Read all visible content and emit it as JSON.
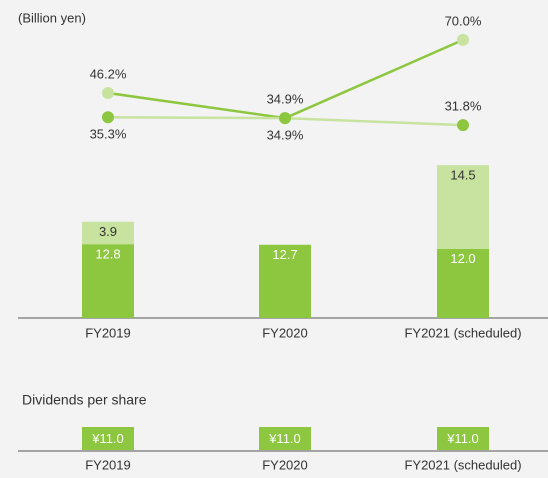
{
  "chart_data": [
    {
      "type": "combo",
      "unit_label": "(Billion yen)",
      "categories": [
        "FY2019",
        "FY2020",
        "FY2021 (scheduled)"
      ],
      "ylim": [
        0,
        30
      ],
      "y2lim": [
        0,
        100
      ],
      "series": [
        {
          "type": "bar",
          "color": "#8dc63f",
          "label_color": "#ffffff",
          "values": [
            12.8,
            12.7,
            12.0
          ],
          "value_labels": [
            "12.8",
            "12.7",
            "12.0"
          ]
        },
        {
          "type": "bar",
          "color": "#c8e2a0",
          "label_color": "#333333",
          "values": [
            3.9,
            null,
            14.5
          ]
        },
        {
          "type": "line",
          "axis": "y2",
          "color": "#8dc63f",
          "marker_color": "#c8e2a0",
          "values": [
            46.2,
            34.9,
            70.0
          ],
          "value_labels": [
            "46.2%",
            "34.9%",
            "70.0%"
          ]
        },
        {
          "type": "line",
          "axis": "y2",
          "color": "#c8e2a0",
          "marker_color": "#8dc63f",
          "values": [
            35.3,
            34.9,
            31.8
          ],
          "value_labels": [
            "35.3%",
            "34.9%",
            "31.8%"
          ]
        }
      ]
    },
    {
      "type": "bar",
      "title": "Dividends per share",
      "categories": [
        "FY2019",
        "FY2020",
        "FY2021 (scheduled)"
      ],
      "ylim": [
        0,
        11
      ],
      "color": "#8dc63f",
      "label_color": "#ffffff",
      "values": [
        11.0,
        11.0,
        11.0
      ],
      "value_labels": [
        "¥11.0",
        "¥11.0",
        "¥11.0"
      ]
    }
  ]
}
